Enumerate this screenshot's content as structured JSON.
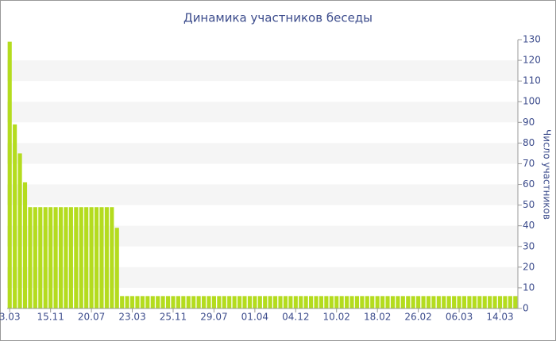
{
  "chart_data": {
    "type": "bar",
    "title": "Динамика участников беседы",
    "y_axis_label": "Число участников",
    "categories": [
      "3.03",
      null,
      null,
      null,
      null,
      null,
      null,
      null,
      "15.11",
      null,
      null,
      null,
      null,
      null,
      null,
      null,
      "20.07",
      null,
      null,
      null,
      null,
      null,
      null,
      null,
      "23.03",
      null,
      null,
      null,
      null,
      null,
      null,
      null,
      "25.11",
      null,
      null,
      null,
      null,
      null,
      null,
      null,
      "29.07",
      null,
      null,
      null,
      null,
      null,
      null,
      null,
      "01.04",
      null,
      null,
      null,
      null,
      null,
      null,
      null,
      "04.12",
      null,
      null,
      null,
      null,
      null,
      null,
      null,
      "10.02",
      null,
      null,
      null,
      null,
      null,
      null,
      null,
      "18.02",
      null,
      null,
      null,
      null,
      null,
      null,
      null,
      "26.02",
      null,
      null,
      null,
      null,
      null,
      null,
      null,
      "06.03",
      null,
      null,
      null,
      null,
      null,
      null,
      null,
      "14.03",
      null,
      null,
      null
    ],
    "values": [
      129,
      89,
      75,
      61,
      49,
      49,
      49,
      49,
      49,
      49,
      49,
      49,
      49,
      49,
      49,
      49,
      49,
      49,
      49,
      49,
      49,
      39,
      6,
      6,
      6,
      6,
      6,
      6,
      6,
      6,
      6,
      6,
      6,
      6,
      6,
      6,
      6,
      6,
      6,
      6,
      6,
      6,
      6,
      6,
      6,
      6,
      6,
      6,
      6,
      6,
      6,
      6,
      6,
      6,
      6,
      6,
      6,
      6,
      6,
      6,
      6,
      6,
      6,
      6,
      6,
      6,
      6,
      6,
      6,
      6,
      6,
      6,
      6,
      6,
      6,
      6,
      6,
      6,
      6,
      6,
      6,
      6,
      6,
      6,
      6,
      6,
      6,
      6,
      6,
      6,
      6,
      6,
      6,
      6,
      6,
      6,
      6,
      6,
      6,
      6
    ],
    "color": "#b4dc1e",
    "ylim": [
      0,
      130
    ],
    "yticks": [
      0,
      10,
      20,
      30,
      40,
      50,
      60,
      70,
      80,
      90,
      100,
      110,
      120,
      130
    ],
    "grid": true,
    "y_axis_side": "right"
  }
}
